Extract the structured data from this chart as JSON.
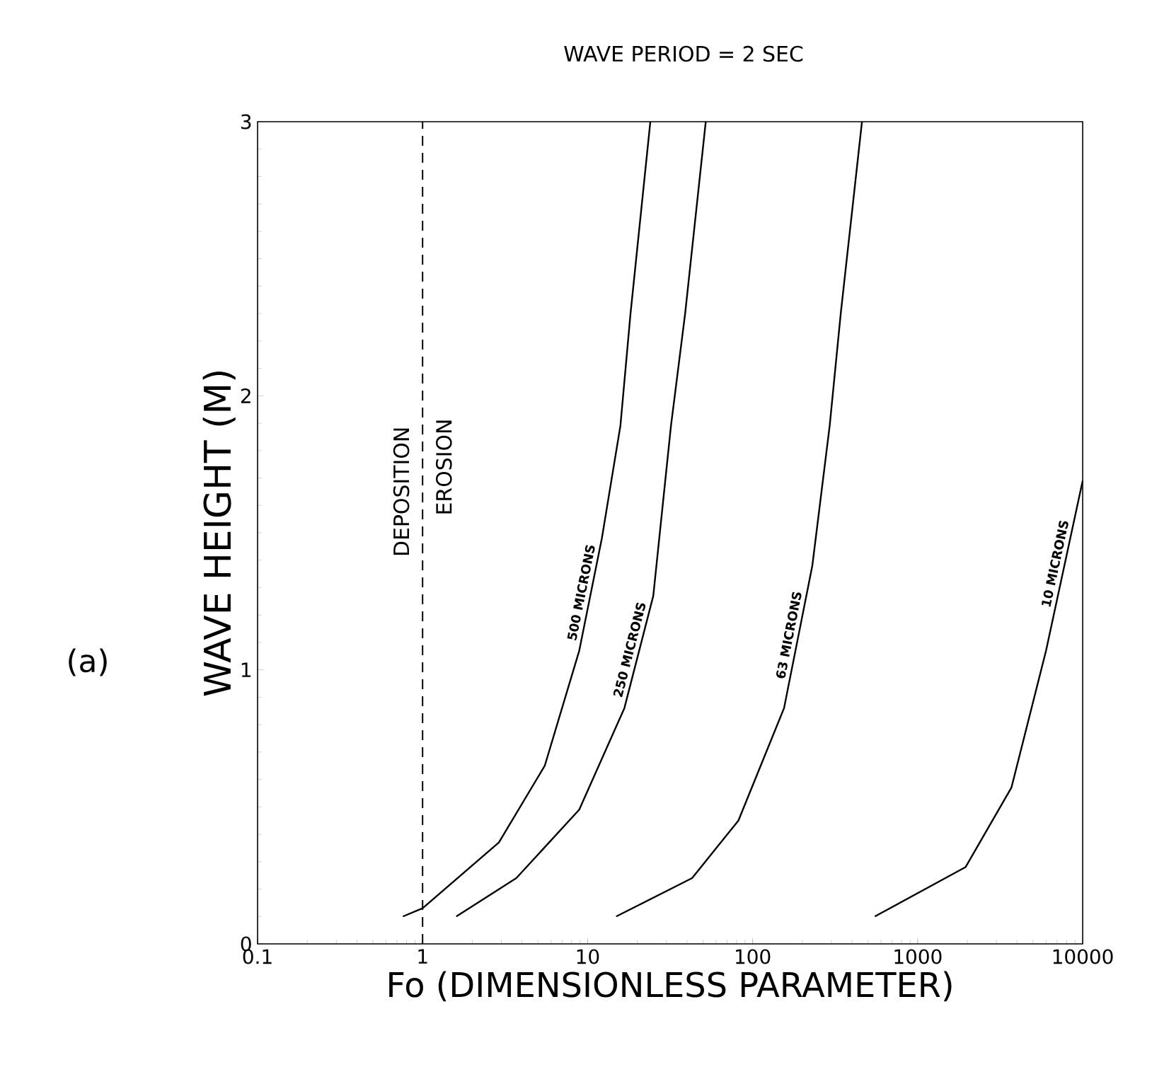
{
  "chart_data": {
    "type": "line",
    "title": "WAVE PERIOD = 2 SEC",
    "xlabel": "Fo (DIMENSIONLESS PARAMETER)",
    "ylabel": "WAVE HEIGHT (M)",
    "log": "x",
    "xlim": [
      0.1,
      10000
    ],
    "ylim": [
      0,
      3
    ],
    "xticks": [
      0.1,
      1,
      10,
      100,
      1000,
      10000
    ],
    "yticks": [
      0,
      1,
      2,
      3
    ],
    "series": [
      {
        "name": "500 MICRONS",
        "color": "#000000",
        "x": [
          0.76,
          1.0,
          2.9,
          5.5,
          8.9,
          12.2,
          15.8,
          18.2,
          24
        ],
        "values": [
          0.1,
          0.13,
          0.37,
          0.65,
          1.07,
          1.48,
          1.89,
          2.3,
          3.0
        ]
      },
      {
        "name": "250 MICRONS",
        "color": "#000000",
        "x": [
          1.6,
          3.7,
          8.9,
          16.7,
          25,
          32,
          39,
          52
        ],
        "values": [
          0.1,
          0.24,
          0.49,
          0.86,
          1.27,
          1.89,
          2.3,
          3.0
        ]
      },
      {
        "name": "63 MICRONS",
        "color": "#000000",
        "x": [
          14.9,
          43,
          82,
          155,
          230,
          293,
          342,
          460
        ],
        "values": [
          0.1,
          0.24,
          0.45,
          0.86,
          1.38,
          1.89,
          2.3,
          3.0
        ]
      },
      {
        "name": "10 MICRONS",
        "color": "#000000",
        "x": [
          550,
          1950,
          3700,
          6000,
          10000
        ],
        "values": [
          0.1,
          0.28,
          0.57,
          1.07,
          1.69
        ]
      }
    ],
    "ref_lines": [
      {
        "axis": "x",
        "value": 1,
        "color": "#000000",
        "line_style": "dashed"
      }
    ],
    "annotations": [
      "DEPOSITION",
      "EROSION",
      "(a)"
    ]
  }
}
